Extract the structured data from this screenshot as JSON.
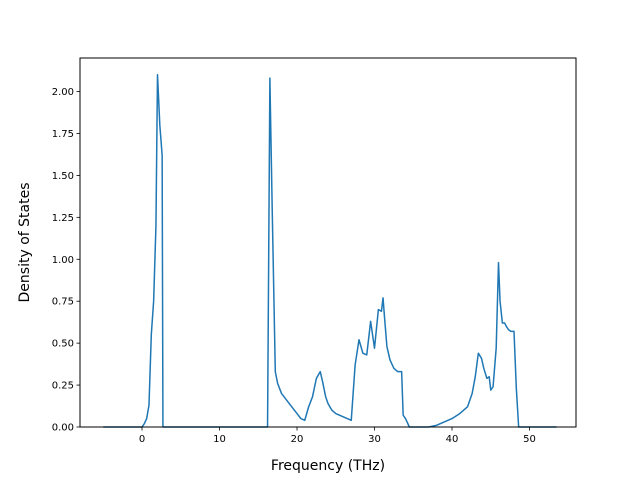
{
  "chart_data": {
    "type": "line",
    "title": "",
    "xlabel": "Frequency (THz)",
    "ylabel": "Density of States",
    "xlim": [
      -8.0,
      56.0
    ],
    "ylim": [
      0.0,
      2.2
    ],
    "xticks": [
      0,
      10,
      20,
      30,
      40,
      50
    ],
    "yticks": [
      0.0,
      0.25,
      0.5,
      0.75,
      1.0,
      1.25,
      1.5,
      1.75,
      2.0
    ],
    "xtick_labels": [
      "0",
      "10",
      "20",
      "30",
      "40",
      "50"
    ],
    "ytick_labels": [
      "0.00",
      "0.25",
      "0.50",
      "0.75",
      "1.00",
      "1.25",
      "1.50",
      "1.75",
      "2.00"
    ],
    "grid": false,
    "legend": false,
    "series": [
      {
        "color": "#1f77b4",
        "x": [
          -5.0,
          0.0,
          0.3,
          0.6,
          0.9,
          1.2,
          1.5,
          1.8,
          2.0,
          2.3,
          2.6,
          2.7,
          3.0,
          5.0,
          10.0,
          15.0,
          16.2,
          16.5,
          16.8,
          17.2,
          17.5,
          18.0,
          19.0,
          20.0,
          20.5,
          21.0,
          21.5,
          22.0,
          22.5,
          23.0,
          23.3,
          23.7,
          24.0,
          24.5,
          25.0,
          26.0,
          27.0,
          27.5,
          28.0,
          28.5,
          29.0,
          29.5,
          30.0,
          30.5,
          30.9,
          31.1,
          31.3,
          31.6,
          32.0,
          32.5,
          33.0,
          33.5,
          33.7,
          34.0,
          34.5,
          35.0,
          36.0,
          37.0,
          38.0,
          39.0,
          40.0,
          41.0,
          42.0,
          42.6,
          43.0,
          43.4,
          43.8,
          44.1,
          44.5,
          44.8,
          45.0,
          45.3,
          45.7,
          46.0,
          46.2,
          46.5,
          46.8,
          47.0,
          47.3,
          47.6,
          48.0,
          48.3,
          48.6,
          49.0,
          50.0,
          53.5
        ],
        "y": [
          0.0,
          0.0,
          0.02,
          0.05,
          0.13,
          0.55,
          0.75,
          1.2,
          2.1,
          1.8,
          1.62,
          0.0,
          0.0,
          0.0,
          0.0,
          0.0,
          0.0,
          2.08,
          1.3,
          0.33,
          0.26,
          0.2,
          0.14,
          0.08,
          0.05,
          0.04,
          0.12,
          0.18,
          0.29,
          0.33,
          0.27,
          0.18,
          0.14,
          0.1,
          0.08,
          0.06,
          0.04,
          0.37,
          0.52,
          0.44,
          0.43,
          0.63,
          0.47,
          0.7,
          0.69,
          0.77,
          0.65,
          0.48,
          0.4,
          0.35,
          0.33,
          0.33,
          0.07,
          0.05,
          0.0,
          0.0,
          0.0,
          0.0,
          0.01,
          0.03,
          0.05,
          0.08,
          0.12,
          0.2,
          0.3,
          0.44,
          0.41,
          0.35,
          0.29,
          0.3,
          0.22,
          0.24,
          0.47,
          0.98,
          0.75,
          0.62,
          0.62,
          0.6,
          0.58,
          0.57,
          0.57,
          0.23,
          0.0,
          0.0,
          0.0,
          0.0
        ]
      }
    ]
  }
}
